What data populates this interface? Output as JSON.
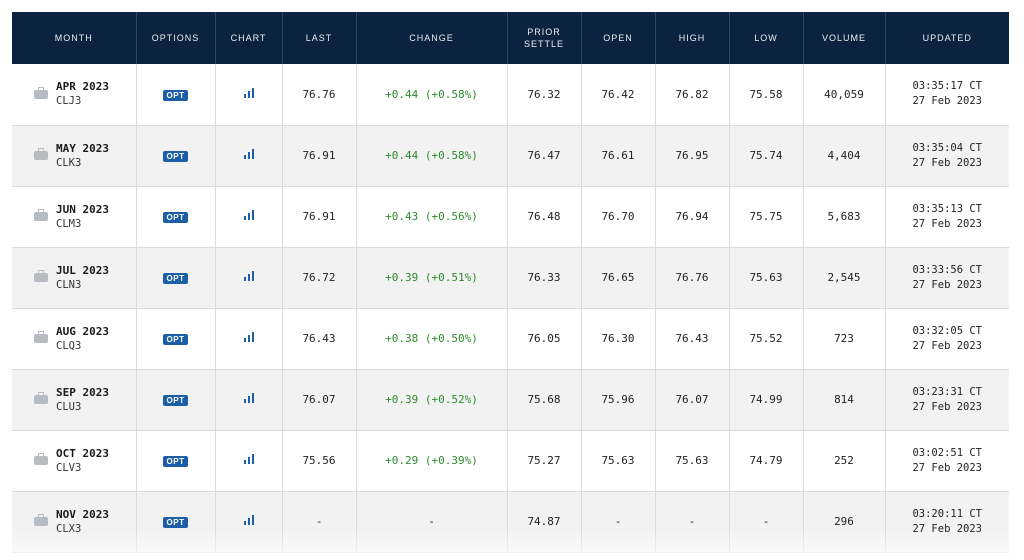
{
  "headers": {
    "month": "MONTH",
    "options": "OPTIONS",
    "chart": "CHART",
    "last": "LAST",
    "change": "CHANGE",
    "prior_settle_1": "PRIOR",
    "prior_settle_2": "SETTLE",
    "open": "OPEN",
    "high": "HIGH",
    "low": "LOW",
    "volume": "VOLUME",
    "updated": "UPDATED"
  },
  "opt_label": "OPT",
  "icons": {
    "month": "briefcase-icon",
    "chart": "bar-chart-icon"
  },
  "colors": {
    "header_bg": "#0c2340",
    "opt_badge": "#1d5fa6",
    "change_positive": "#2e8b2e"
  },
  "rows": [
    {
      "month": "APR 2023",
      "code": "CLJ3",
      "last": "76.76",
      "change": "+0.44 (+0.58%)",
      "prior": "76.32",
      "open": "76.42",
      "high": "76.82",
      "low": "75.58",
      "volume": "40,059",
      "time": "03:35:17 CT",
      "date": "27 Feb 2023"
    },
    {
      "month": "MAY 2023",
      "code": "CLK3",
      "last": "76.91",
      "change": "+0.44 (+0.58%)",
      "prior": "76.47",
      "open": "76.61",
      "high": "76.95",
      "low": "75.74",
      "volume": "4,404",
      "time": "03:35:04 CT",
      "date": "27 Feb 2023"
    },
    {
      "month": "JUN 2023",
      "code": "CLM3",
      "last": "76.91",
      "change": "+0.43 (+0.56%)",
      "prior": "76.48",
      "open": "76.70",
      "high": "76.94",
      "low": "75.75",
      "volume": "5,683",
      "time": "03:35:13 CT",
      "date": "27 Feb 2023"
    },
    {
      "month": "JUL 2023",
      "code": "CLN3",
      "last": "76.72",
      "change": "+0.39 (+0.51%)",
      "prior": "76.33",
      "open": "76.65",
      "high": "76.76",
      "low": "75.63",
      "volume": "2,545",
      "time": "03:33:56 CT",
      "date": "27 Feb 2023"
    },
    {
      "month": "AUG 2023",
      "code": "CLQ3",
      "last": "76.43",
      "change": "+0.38 (+0.50%)",
      "prior": "76.05",
      "open": "76.30",
      "high": "76.43",
      "low": "75.52",
      "volume": "723",
      "time": "03:32:05 CT",
      "date": "27 Feb 2023"
    },
    {
      "month": "SEP 2023",
      "code": "CLU3",
      "last": "76.07",
      "change": "+0.39 (+0.52%)",
      "prior": "75.68",
      "open": "75.96",
      "high": "76.07",
      "low": "74.99",
      "volume": "814",
      "time": "03:23:31 CT",
      "date": "27 Feb 2023"
    },
    {
      "month": "OCT 2023",
      "code": "CLV3",
      "last": "75.56",
      "change": "+0.29 (+0.39%)",
      "prior": "75.27",
      "open": "75.63",
      "high": "75.63",
      "low": "74.79",
      "volume": "252",
      "time": "03:02:51 CT",
      "date": "27 Feb 2023"
    },
    {
      "month": "NOV 2023",
      "code": "CLX3",
      "last": "-",
      "change": "-",
      "prior": "74.87",
      "open": "-",
      "high": "-",
      "low": "-",
      "volume": "296",
      "time": "03:20:11 CT",
      "date": "27 Feb 2023"
    }
  ]
}
